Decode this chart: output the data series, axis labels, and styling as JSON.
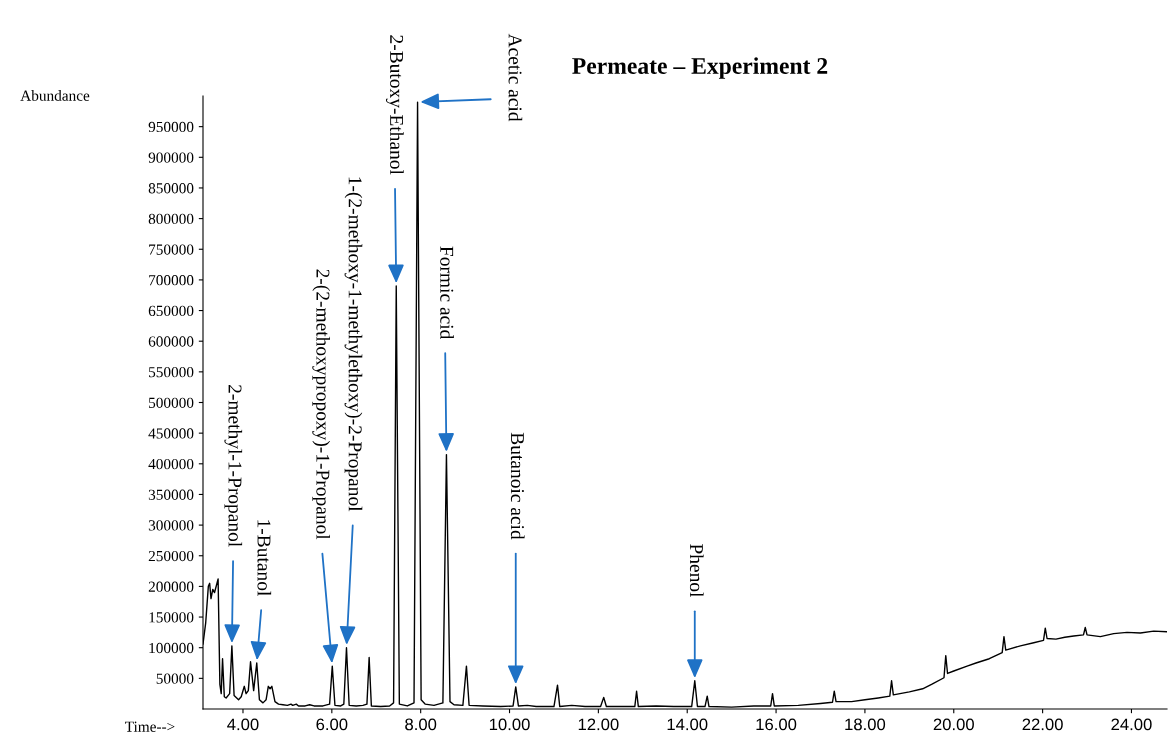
{
  "chart_data": {
    "type": "line",
    "title": "Permeate – Experiment 2",
    "xlabel": "Time-->",
    "ylabel": "Abundance",
    "x": [
      3.1,
      3.16,
      3.22,
      3.25,
      3.28,
      3.32,
      3.36,
      3.44,
      3.48,
      3.51,
      3.54,
      3.58,
      3.62,
      3.7,
      3.75,
      3.8,
      3.9,
      3.96,
      4.03,
      4.07,
      4.12,
      4.17,
      4.24,
      4.31,
      4.37,
      4.45,
      4.52,
      4.57,
      4.61,
      4.65,
      4.72,
      4.8,
      4.9,
      5.0,
      5.08,
      5.12,
      5.2,
      5.25,
      5.4,
      5.5,
      5.6,
      5.8,
      5.95,
      6.01,
      6.07,
      6.2,
      6.27,
      6.33,
      6.39,
      6.55,
      6.7,
      6.79,
      6.84,
      6.89,
      7.1,
      7.3,
      7.39,
      7.45,
      7.52,
      7.7,
      7.85,
      7.93,
      8.01,
      8.1,
      8.3,
      8.5,
      8.58,
      8.66,
      8.75,
      8.95,
      9.03,
      9.09,
      9.4,
      9.8,
      10.08,
      10.14,
      10.2,
      10.4,
      10.6,
      11.0,
      11.08,
      11.13,
      11.4,
      11.7,
      12.05,
      12.12,
      12.18,
      12.5,
      12.82,
      12.86,
      12.9,
      13.3,
      13.7,
      14.1,
      14.17,
      14.23,
      14.4,
      14.45,
      14.49,
      15.0,
      15.5,
      15.88,
      15.92,
      15.96,
      16.5,
      17.0,
      17.27,
      17.31,
      17.35,
      17.7,
      18.0,
      18.3,
      18.56,
      18.6,
      18.64,
      19.0,
      19.3,
      19.5,
      19.78,
      19.82,
      19.86,
      20.0,
      20.3,
      20.5,
      20.8,
      21.09,
      21.13,
      21.17,
      21.5,
      21.8,
      22.02,
      22.06,
      22.1,
      22.3,
      22.5,
      22.7,
      22.92,
      22.96,
      23.0,
      23.3,
      23.6,
      23.9,
      24.2,
      24.5,
      24.8
    ],
    "series": [
      {
        "color": "#000000",
        "values": [
          106000,
          140000,
          200000,
          205000,
          180000,
          195000,
          190000,
          212000,
          40000,
          25000,
          82000,
          20000,
          18000,
          25000,
          103000,
          22000,
          15000,
          20000,
          37000,
          25000,
          30000,
          77000,
          30000,
          75000,
          15000,
          10000,
          15000,
          37000,
          33000,
          37000,
          12000,
          8000,
          7000,
          6000,
          8000,
          6000,
          8000,
          5000,
          5000,
          7000,
          5000,
          5000,
          8000,
          70000,
          6000,
          5000,
          8000,
          100000,
          6000,
          5000,
          6000,
          8000,
          84000,
          5000,
          4000,
          5000,
          10000,
          690000,
          8000,
          5000,
          10000,
          990000,
          15000,
          8000,
          6000,
          10000,
          415000,
          12000,
          7000,
          6000,
          70000,
          6000,
          5000,
          4000,
          5000,
          36000,
          5000,
          6000,
          4000,
          4000,
          39000,
          4000,
          6000,
          4000,
          4000,
          19000,
          4000,
          4000,
          4000,
          29000,
          4000,
          5000,
          4000,
          4000,
          46000,
          4000,
          4000,
          21000,
          4000,
          3000,
          5000,
          5000,
          25000,
          5000,
          6000,
          9000,
          11000,
          29000,
          12000,
          12000,
          15000,
          18000,
          21000,
          46000,
          23000,
          28000,
          33000,
          40000,
          51000,
          87000,
          58000,
          62000,
          70000,
          75000,
          82000,
          92000,
          118000,
          96000,
          103000,
          108000,
          112000,
          132000,
          115000,
          114000,
          117000,
          119000,
          121000,
          133000,
          121000,
          118000,
          123000,
          125000,
          124000,
          127000,
          126000
        ]
      }
    ],
    "xlim": [
      3.1,
      24.8
    ],
    "ylim": [
      0,
      1000000
    ],
    "xticks": [
      {
        "value": 4,
        "label": "4.00"
      },
      {
        "value": 6,
        "label": "6.00"
      },
      {
        "value": 8,
        "label": "8.00"
      },
      {
        "value": 10,
        "label": "10.00"
      },
      {
        "value": 12,
        "label": "12.00"
      },
      {
        "value": 14,
        "label": "14.00"
      },
      {
        "value": 16,
        "label": "16.00"
      },
      {
        "value": 18,
        "label": "18.00"
      },
      {
        "value": 20,
        "label": "20.00"
      },
      {
        "value": 22,
        "label": "22.00"
      },
      {
        "value": 24,
        "label": "24.00"
      }
    ],
    "yticks": [
      50000,
      100000,
      150000,
      200000,
      250000,
      300000,
      350000,
      400000,
      450000,
      500000,
      550000,
      600000,
      650000,
      700000,
      750000,
      800000,
      850000,
      900000,
      950000
    ],
    "annotations": [
      {
        "text": "2-methyl-1-Propanol",
        "x": 3.75,
        "y": 103000
      },
      {
        "text": "1-Butanol",
        "x": 4.31,
        "y": 75000
      },
      {
        "text": "2-(2-methoxypropoxy)-1-Propanol",
        "x": 6.01,
        "y": 70000
      },
      {
        "text": "1-(2-methoxy-1-methylethoxy)-2-Propanol",
        "x": 6.33,
        "y": 100000
      },
      {
        "text": "2-Butoxy-Ethanol",
        "x": 7.45,
        "y": 690000
      },
      {
        "text": "Acetic acid",
        "x": 7.93,
        "y": 990000
      },
      {
        "text": "Formic acid",
        "x": 8.58,
        "y": 415000
      },
      {
        "text": "Butanoic acid",
        "x": 10.14,
        "y": 36000
      },
      {
        "text": "Phenol",
        "x": 14.17,
        "y": 46000
      }
    ],
    "grid": false,
    "marker": "none",
    "line_style": "solid"
  }
}
